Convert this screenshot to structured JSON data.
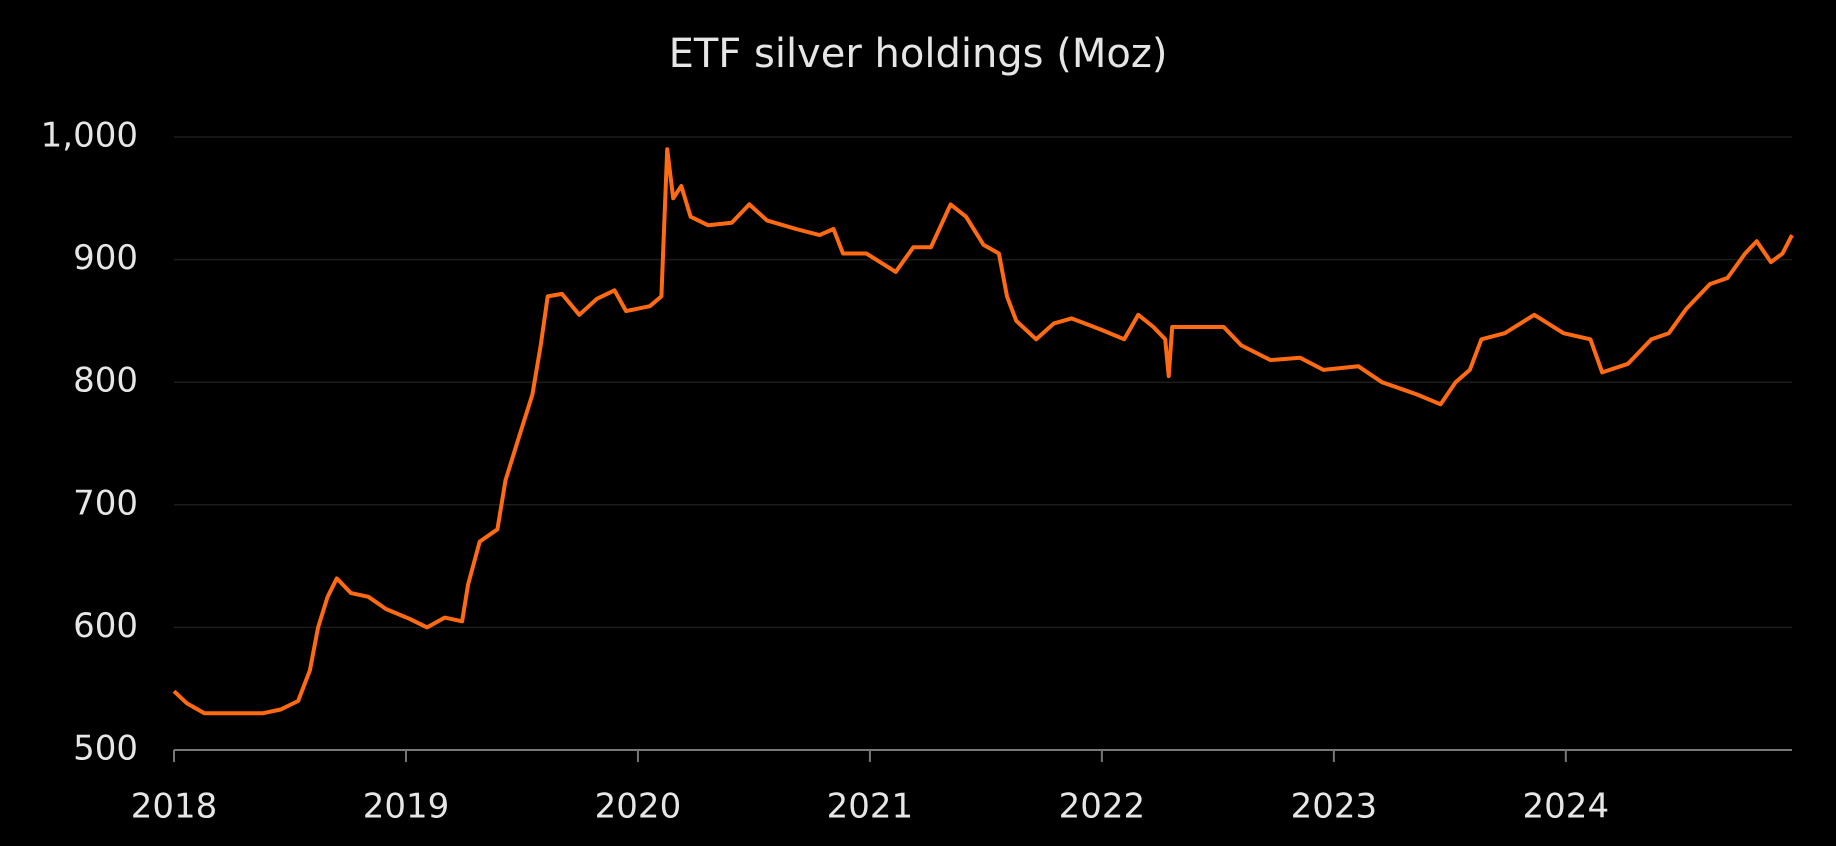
{
  "chart_data": {
    "type": "line",
    "title": "ETF silver holdings (Moz)",
    "x": [
      2018.0,
      2018.056,
      2018.131,
      2018.258,
      2018.384,
      2018.46,
      2018.535,
      2018.586,
      2018.621,
      2018.662,
      2018.702,
      2018.763,
      2018.838,
      2018.914,
      2019.015,
      2019.091,
      2019.167,
      2019.242,
      2019.268,
      2019.318,
      2019.394,
      2019.429,
      2019.495,
      2019.545,
      2019.581,
      2019.611,
      2019.672,
      2019.747,
      2019.823,
      2019.899,
      2019.949,
      2020.051,
      2020.101,
      2020.126,
      2020.152,
      2020.187,
      2020.227,
      2020.303,
      2020.404,
      2020.48,
      2020.556,
      2020.682,
      2020.783,
      2020.843,
      2020.884,
      2020.985,
      2021.111,
      2021.187,
      2021.263,
      2021.348,
      2021.414,
      2021.49,
      2021.556,
      2021.591,
      2021.631,
      2021.717,
      2021.793,
      2021.869,
      2021.995,
      2022.096,
      2022.157,
      2022.222,
      2022.273,
      2022.288,
      2022.303,
      2022.399,
      2022.525,
      2022.601,
      2022.727,
      2022.854,
      2022.955,
      2023.106,
      2023.207,
      2023.283,
      2023.359,
      2023.46,
      2023.525,
      2023.586,
      2023.636,
      2023.737,
      2023.864,
      2023.99,
      2024.106,
      2024.157,
      2024.268,
      2024.369,
      2024.444,
      2024.52,
      2024.621,
      2024.697,
      2024.773,
      2024.823,
      2024.884,
      2024.934,
      2024.975
    ],
    "series": [
      {
        "name": "ETF silver holdings",
        "color": "#ff6a13",
        "values": [
          548,
          538,
          530,
          530,
          530,
          533,
          540,
          565,
          600,
          625,
          640,
          628,
          625,
          615,
          607,
          600,
          608,
          605,
          635,
          670,
          680,
          720,
          760,
          790,
          830,
          870,
          872,
          855,
          868,
          875,
          858,
          862,
          870,
          990,
          950,
          960,
          935,
          928,
          930,
          945,
          932,
          925,
          920,
          925,
          905,
          905,
          890,
          910,
          910,
          945,
          935,
          912,
          905,
          870,
          850,
          835,
          848,
          852,
          843,
          835,
          855,
          845,
          835,
          805,
          845,
          845,
          845,
          830,
          818,
          820,
          810,
          813,
          800,
          795,
          790,
          782,
          800,
          810,
          835,
          840,
          855,
          840,
          835,
          808,
          815,
          835,
          840,
          860,
          880,
          885,
          905,
          915,
          898,
          905,
          920
        ]
      }
    ],
    "xlim": [
      2018,
      2024.975
    ],
    "xticks": [
      2018,
      2019,
      2020,
      2021,
      2022,
      2023,
      2024
    ],
    "ylim": [
      500,
      1000
    ],
    "yticks": [
      500,
      600,
      700,
      800,
      900,
      {
        "value": 1000,
        "label": "1,000"
      }
    ],
    "grid": true
  }
}
